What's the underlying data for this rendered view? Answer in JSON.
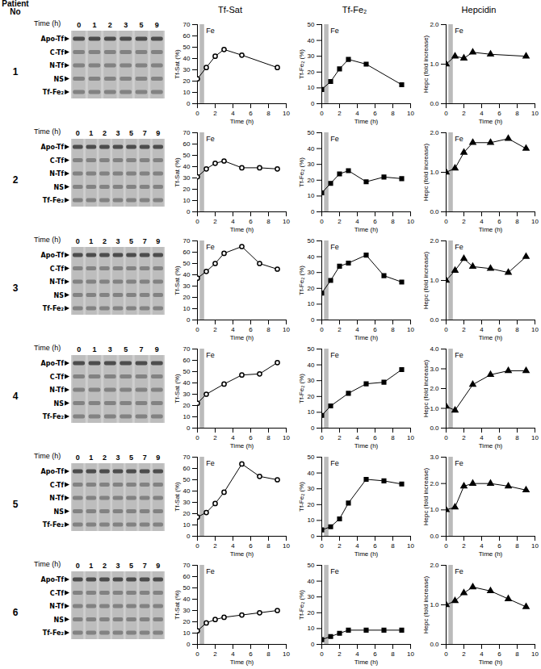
{
  "patient_label": "Patient No",
  "gels": [
    {
      "patient": "1",
      "time_label": "Time (h)",
      "lanes": [
        0,
        1,
        2,
        3,
        5,
        9
      ],
      "bands": [
        "Apo-Tf",
        "C-Tf",
        "N-Tf",
        "NS",
        "Tf-Fe₂"
      ]
    },
    {
      "patient": "2",
      "time_label": "Time (h)",
      "lanes": [
        0,
        1,
        2,
        3,
        5,
        7,
        9
      ],
      "bands": [
        "Apo-Tf",
        "C-Tf",
        "N-Tf",
        "NS",
        "Tf-Fe₂"
      ]
    },
    {
      "patient": "3",
      "time_label": "Time (h)",
      "lanes": [
        0,
        1,
        2,
        3,
        5,
        7,
        9
      ],
      "bands": [
        "Apo-Tf",
        "C-Tf",
        "N-Tf",
        "NS",
        "Tf-Fe₂"
      ]
    },
    {
      "patient": "4",
      "time_label": "Time (h)",
      "lanes": [
        0,
        1,
        3,
        5,
        7,
        9
      ],
      "bands": [
        "Apo-Tf",
        "C-Tf",
        "N-Tf",
        "NS",
        "Tf-Fe₂"
      ]
    },
    {
      "patient": "5",
      "time_label": "Time (h)",
      "lanes": [
        0,
        1,
        2,
        3,
        5,
        7,
        9
      ],
      "bands": [
        "Apo-Tf",
        "C-Tf",
        "N-Tf",
        "NS",
        "Tf-Fe₂"
      ]
    },
    {
      "patient": "6",
      "time_label": "Time (h)",
      "lanes": [
        0,
        1,
        2,
        3,
        5,
        7,
        9
      ],
      "bands": [
        "Apo-Tf",
        "C-Tf",
        "N-Tf",
        "NS",
        "Tf-Fe₂"
      ]
    }
  ],
  "chart_data": [
    {
      "type": "line",
      "title": "Tf-Sat",
      "x_label": "Time (h)",
      "y_label": "Tf-Sat (%)",
      "x": [
        0,
        1,
        2,
        3,
        5,
        9
      ],
      "values": [
        22,
        32,
        42,
        48,
        43,
        32
      ],
      "color": "#000000",
      "marker": "circle-open",
      "line_style": "solid",
      "xlim": [
        0,
        10
      ],
      "xticks": [
        0,
        2,
        4,
        6,
        8,
        10
      ],
      "ylim": [
        0,
        70
      ],
      "yticks": [
        0,
        10,
        20,
        30,
        40,
        50,
        60,
        70
      ],
      "annotations": [
        {
          "text": "Fe",
          "x0": 0.3,
          "x1": 0.8
        }
      ]
    },
    {
      "type": "line",
      "title": "Tf-Fe₂",
      "x_label": "Time (h)",
      "y_label": "Tf-Fe₂ (%)",
      "x": [
        0,
        1,
        2,
        3,
        5,
        9
      ],
      "values": [
        9,
        14,
        22,
        28,
        25,
        12
      ],
      "color": "#000000",
      "marker": "square",
      "line_style": "solid",
      "xlim": [
        0,
        10
      ],
      "xticks": [
        0,
        2,
        4,
        6,
        8,
        10
      ],
      "ylim": [
        0,
        50
      ],
      "yticks": [
        0,
        10,
        20,
        30,
        40,
        50
      ],
      "annotations": [
        {
          "text": "Fe",
          "x0": 0.3,
          "x1": 0.8
        }
      ]
    },
    {
      "type": "line",
      "title": "Hepcidin",
      "x_label": "Time (h)",
      "y_label": "Hepc (fold increase)",
      "x": [
        0,
        1,
        2,
        3,
        5,
        9
      ],
      "values": [
        1.0,
        1.2,
        1.15,
        1.3,
        1.25,
        1.2
      ],
      "color": "#000000",
      "marker": "triangle",
      "line_style": "solid",
      "xlim": [
        0,
        10
      ],
      "xticks": [
        0,
        2,
        4,
        6,
        8,
        10
      ],
      "ylim": [
        0,
        2
      ],
      "yticks": [
        0,
        1,
        2
      ],
      "annotations": [
        {
          "text": "Fe",
          "x0": 0.3,
          "x1": 0.8
        }
      ]
    },
    {
      "type": "line",
      "x_label": "Time (h)",
      "y_label": "Tf-Sat (%)",
      "x": [
        0,
        1,
        2,
        3,
        5,
        7,
        9
      ],
      "values": [
        31,
        38,
        43,
        45,
        39,
        39,
        38
      ],
      "color": "#000000",
      "marker": "circle-open",
      "line_style": "solid",
      "xlim": [
        0,
        10
      ],
      "xticks": [
        0,
        2,
        4,
        6,
        8,
        10
      ],
      "ylim": [
        0,
        70
      ],
      "yticks": [
        0,
        10,
        20,
        30,
        40,
        50,
        60,
        70
      ],
      "annotations": [
        {
          "text": "Fe",
          "x0": 0.3,
          "x1": 0.8
        }
      ]
    },
    {
      "type": "line",
      "x_label": "Time (h)",
      "y_label": "Tf-Fe₂ (%)",
      "x": [
        0,
        1,
        2,
        3,
        5,
        7,
        9
      ],
      "values": [
        12,
        18,
        24,
        26,
        19,
        22,
        21
      ],
      "color": "#000000",
      "marker": "square",
      "line_style": "solid",
      "xlim": [
        0,
        10
      ],
      "xticks": [
        0,
        2,
        4,
        6,
        8,
        10
      ],
      "ylim": [
        0,
        50
      ],
      "yticks": [
        0,
        10,
        20,
        30,
        40,
        50
      ],
      "annotations": [
        {
          "text": "Fe",
          "x0": 0.3,
          "x1": 0.8
        }
      ]
    },
    {
      "type": "line",
      "x_label": "Time (h)",
      "y_label": "Hepc (fold increase)",
      "x": [
        0,
        1,
        2,
        3,
        5,
        7,
        9
      ],
      "values": [
        1.0,
        1.1,
        1.5,
        1.75,
        1.75,
        1.85,
        1.6
      ],
      "color": "#000000",
      "marker": "triangle",
      "line_style": "solid",
      "xlim": [
        0,
        10
      ],
      "xticks": [
        0,
        2,
        4,
        6,
        8,
        10
      ],
      "ylim": [
        0,
        2
      ],
      "yticks": [
        0,
        1,
        2
      ],
      "annotations": [
        {
          "text": "Fe",
          "x0": 0.3,
          "x1": 0.8
        }
      ]
    },
    {
      "type": "line",
      "x_label": "Time (h)",
      "y_label": "Tf-Sat (%)",
      "x": [
        0,
        1,
        2,
        3,
        5,
        7,
        9
      ],
      "values": [
        37,
        43,
        50,
        59,
        65,
        50,
        45
      ],
      "color": "#000000",
      "marker": "circle-open",
      "line_style": "solid",
      "xlim": [
        0,
        10
      ],
      "xticks": [
        0,
        2,
        4,
        6,
        8,
        10
      ],
      "ylim": [
        0,
        70
      ],
      "yticks": [
        0,
        10,
        20,
        30,
        40,
        50,
        60,
        70
      ],
      "annotations": [
        {
          "text": "Fe",
          "x0": 0.3,
          "x1": 0.8
        }
      ]
    },
    {
      "type": "line",
      "x_label": "Time (h)",
      "y_label": "Tf-Fe₂ (%)",
      "x": [
        0,
        1,
        2,
        3,
        5,
        7,
        9
      ],
      "values": [
        17,
        25,
        34,
        36,
        41,
        28,
        24
      ],
      "color": "#000000",
      "marker": "square",
      "line_style": "solid",
      "xlim": [
        0,
        10
      ],
      "xticks": [
        0,
        2,
        4,
        6,
        8,
        10
      ],
      "ylim": [
        0,
        50
      ],
      "yticks": [
        0,
        10,
        20,
        30,
        40,
        50
      ],
      "annotations": [
        {
          "text": "Fe",
          "x0": 0.3,
          "x1": 0.8
        }
      ]
    },
    {
      "type": "line",
      "x_label": "Time (h)",
      "y_label": "Hepc (fold increase)",
      "x": [
        0,
        1,
        2,
        3,
        5,
        7,
        9
      ],
      "values": [
        1.0,
        1.25,
        1.55,
        1.35,
        1.3,
        1.2,
        1.6
      ],
      "color": "#000000",
      "marker": "triangle",
      "line_style": "solid",
      "xlim": [
        0,
        10
      ],
      "xticks": [
        0,
        2,
        4,
        6,
        8,
        10
      ],
      "ylim": [
        0,
        2
      ],
      "yticks": [
        0,
        1,
        2
      ],
      "annotations": [
        {
          "text": "Fe",
          "x0": 0.3,
          "x1": 0.8
        }
      ]
    },
    {
      "type": "line",
      "x_label": "Time (h)",
      "y_label": "Tf-Sat (%)",
      "x": [
        0,
        1,
        3,
        5,
        7,
        9
      ],
      "values": [
        22,
        30,
        39,
        47,
        48,
        58
      ],
      "color": "#000000",
      "marker": "circle-open",
      "line_style": "solid",
      "xlim": [
        0,
        10
      ],
      "xticks": [
        0,
        2,
        4,
        6,
        8,
        10
      ],
      "ylim": [
        0,
        70
      ],
      "yticks": [
        0,
        10,
        20,
        30,
        40,
        50,
        60,
        70
      ],
      "annotations": [
        {
          "text": "Fe",
          "x0": 0.3,
          "x1": 0.8
        }
      ]
    },
    {
      "type": "line",
      "x_label": "Time (h)",
      "y_label": "Tf-Fe₂ (%)",
      "x": [
        0,
        1,
        3,
        5,
        7,
        9
      ],
      "values": [
        8,
        14,
        22,
        28,
        29,
        37
      ],
      "color": "#000000",
      "marker": "square",
      "line_style": "solid",
      "xlim": [
        0,
        10
      ],
      "xticks": [
        0,
        2,
        4,
        6,
        8,
        10
      ],
      "ylim": [
        0,
        50
      ],
      "yticks": [
        0,
        10,
        20,
        30,
        40,
        50
      ],
      "annotations": [
        {
          "text": "Fe",
          "x0": 0.3,
          "x1": 0.8
        }
      ]
    },
    {
      "type": "line",
      "x_label": "Time (h)",
      "y_label": "Hepc (fold increase)",
      "x": [
        0,
        1,
        3,
        5,
        7,
        9
      ],
      "values": [
        1.1,
        0.9,
        2.2,
        2.7,
        2.9,
        2.9
      ],
      "color": "#000000",
      "marker": "triangle",
      "line_style": "solid",
      "xlim": [
        0,
        10
      ],
      "xticks": [
        0,
        2,
        4,
        6,
        8,
        10
      ],
      "ylim": [
        0,
        4
      ],
      "yticks": [
        0,
        1,
        2,
        3,
        4
      ],
      "annotations": [
        {
          "text": "Fe",
          "x0": 0.3,
          "x1": 0.8
        }
      ]
    },
    {
      "type": "line",
      "x_label": "Time (h)",
      "y_label": "Tf-Sat (%)",
      "x": [
        0,
        1,
        2,
        3,
        5,
        7,
        9
      ],
      "values": [
        17,
        21,
        29,
        39,
        64,
        53,
        50
      ],
      "color": "#000000",
      "marker": "circle-open",
      "line_style": "solid",
      "xlim": [
        0,
        10
      ],
      "xticks": [
        0,
        2,
        4,
        6,
        8,
        10
      ],
      "ylim": [
        0,
        70
      ],
      "yticks": [
        0,
        10,
        20,
        30,
        40,
        50,
        60,
        70
      ],
      "annotations": [
        {
          "text": "Fe",
          "x0": 0.3,
          "x1": 0.8
        }
      ]
    },
    {
      "type": "line",
      "x_label": "Time (h)",
      "y_label": "Tf-Fe₂ (%)",
      "x": [
        0,
        1,
        2,
        3,
        5,
        7,
        9
      ],
      "values": [
        4,
        6,
        11,
        21,
        36,
        35,
        33
      ],
      "color": "#000000",
      "marker": "square",
      "line_style": "solid",
      "xlim": [
        0,
        10
      ],
      "xticks": [
        0,
        2,
        4,
        6,
        8,
        10
      ],
      "ylim": [
        0,
        50
      ],
      "yticks": [
        0,
        10,
        20,
        30,
        40,
        50
      ],
      "annotations": [
        {
          "text": "Fe",
          "x0": 0.3,
          "x1": 0.8
        }
      ]
    },
    {
      "type": "line",
      "x_label": "Time (h)",
      "y_label": "Hepc (fold increase)",
      "x": [
        0,
        1,
        2,
        3,
        5,
        7,
        9
      ],
      "values": [
        1.0,
        1.1,
        1.9,
        2.0,
        2.0,
        1.9,
        1.75
      ],
      "color": "#000000",
      "marker": "triangle",
      "line_style": "solid",
      "xlim": [
        0,
        10
      ],
      "xticks": [
        0,
        2,
        4,
        6,
        8,
        10
      ],
      "ylim": [
        0,
        3
      ],
      "yticks": [
        0,
        1,
        2,
        3
      ],
      "annotations": [
        {
          "text": "Fe",
          "x0": 0.3,
          "x1": 0.8
        }
      ]
    },
    {
      "type": "line",
      "x_label": "Time (h)",
      "y_label": "Tf-Sat (%)",
      "x": [
        0,
        1,
        2,
        3,
        5,
        7,
        9
      ],
      "values": [
        12,
        19,
        22,
        24,
        26,
        28,
        30
      ],
      "color": "#000000",
      "marker": "circle-open",
      "line_style": "solid",
      "xlim": [
        0,
        10
      ],
      "xticks": [
        0,
        2,
        4,
        6,
        8,
        10
      ],
      "ylim": [
        0,
        70
      ],
      "yticks": [
        0,
        10,
        20,
        30,
        40,
        50,
        60,
        70
      ],
      "annotations": [
        {
          "text": "Fe",
          "x0": 0.3,
          "x1": 0.8
        }
      ]
    },
    {
      "type": "line",
      "x_label": "Time (h)",
      "y_label": "Tf-Fe₂ (%)",
      "x": [
        0,
        1,
        2,
        3,
        5,
        7,
        9
      ],
      "values": [
        3,
        5,
        7,
        9,
        9,
        9,
        9
      ],
      "color": "#000000",
      "marker": "square",
      "line_style": "solid",
      "xlim": [
        0,
        10
      ],
      "xticks": [
        0,
        2,
        4,
        6,
        8,
        10
      ],
      "ylim": [
        0,
        50
      ],
      "yticks": [
        0,
        10,
        20,
        30,
        40,
        50
      ],
      "annotations": [
        {
          "text": "Fe",
          "x0": 0.3,
          "x1": 0.8
        }
      ]
    },
    {
      "type": "line",
      "x_label": "Time (h)",
      "y_label": "Hepc (fold increase)",
      "x": [
        0,
        1,
        2,
        3,
        5,
        7,
        9
      ],
      "values": [
        1.0,
        1.1,
        1.3,
        1.45,
        1.35,
        1.15,
        0.95
      ],
      "color": "#000000",
      "marker": "triangle",
      "line_style": "solid",
      "xlim": [
        0,
        10
      ],
      "xticks": [
        0,
        2,
        4,
        6,
        8,
        10
      ],
      "ylim": [
        0,
        2
      ],
      "yticks": [
        0,
        1,
        2
      ],
      "annotations": [
        {
          "text": "Fe",
          "x0": 0.3,
          "x1": 0.8
        }
      ]
    }
  ]
}
